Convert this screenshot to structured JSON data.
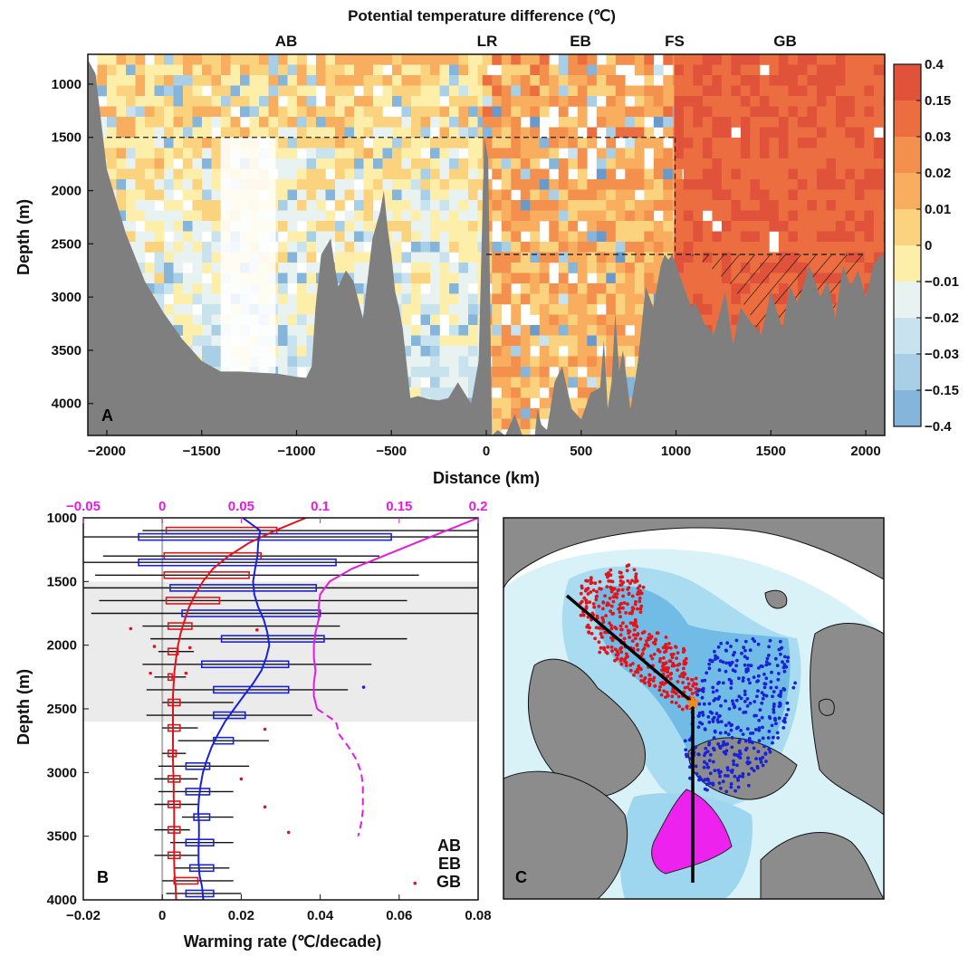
{
  "figure_title": "Potential temperature difference (℃)",
  "colors": {
    "ab": "#e0151b",
    "eb": "#1a22d8",
    "gb": "#e21ce0",
    "gb_fill": "#ee22ee",
    "land": "#7f7f7f",
    "shade": "#ebebeb"
  },
  "chart_data": [
    {
      "panel": "A",
      "type": "heatmap",
      "title": "Potential temperature difference (℃)",
      "xlabel": "Distance (km)",
      "ylabel": "Depth (m)",
      "xlim": [
        -2100,
        2100
      ],
      "ylim": [
        4300,
        720
      ],
      "xticks": [
        -2000,
        -1500,
        -1000,
        -500,
        0,
        500,
        1000,
        1500,
        2000
      ],
      "yticks": [
        1000,
        1500,
        2000,
        2500,
        3000,
        3500,
        4000
      ],
      "basin_labels": [
        {
          "text": "AB",
          "x": -1040
        },
        {
          "text": "LR",
          "x": 0
        },
        {
          "text": "EB",
          "x": 490
        },
        {
          "text": "FS",
          "x": 1000
        },
        {
          "text": "GB",
          "x": 1580
        }
      ],
      "colorbar": {
        "labels": [
          "0.4",
          "0.15",
          "0.03",
          "0.02",
          "0.01",
          "0",
          "-0.01",
          "-0.02",
          "-0.03",
          "-0.15",
          "-0.4"
        ],
        "colors": [
          "#e0533a",
          "#ec6e40",
          "#f3904e",
          "#f8ad5f",
          "#fbd27d",
          "#fdeeaa",
          "#e8f2f0",
          "#c8e2ee",
          "#a9cfe6",
          "#86b5db",
          "#6a9acc"
        ]
      },
      "regions": [
        {
          "name": "AB",
          "x": [
            -2100,
            -20
          ],
          "mean_level": 3.9,
          "depth_decay": 1.5,
          "noise": 2.6,
          "blank_fraction": 0.05
        },
        {
          "name": "EB",
          "x": [
            -20,
            990
          ],
          "mean_level": 2.6,
          "depth_decay": 0.35,
          "noise": 2.8,
          "blank_fraction": 0.1
        },
        {
          "name": "GB",
          "x": [
            990,
            2100
          ],
          "mean_level": 0.5,
          "depth_decay": 0.1,
          "noise": 0.6,
          "blank_fraction": 0.02
        }
      ],
      "dashed_boxes": [
        {
          "x": [
            -2000,
            1000
          ],
          "depth": 1500
        },
        {
          "x": [
            0,
            2000
          ],
          "depth": 2600
        },
        {
          "x": [
            990,
            1000
          ],
          "depth": [
            1500,
            2600
          ]
        }
      ],
      "bathymetry": {
        "distance": [
          -2100,
          -2060,
          -2000,
          -1900,
          -1800,
          -1700,
          -1600,
          -1500,
          -1400,
          -1300,
          -1200,
          -1100,
          -1000,
          -950,
          -920,
          -900,
          -870,
          -820,
          -800,
          -780,
          -740,
          -700,
          -650,
          -600,
          -560,
          -540,
          -520,
          -500,
          -480,
          -460,
          -440,
          -400,
          -360,
          -300,
          -250,
          -200,
          -150,
          -80,
          -40,
          -10,
          10,
          30,
          60,
          100,
          150,
          200,
          250,
          270,
          290,
          320,
          360,
          400,
          450,
          500,
          550,
          600,
          620,
          640,
          660,
          680,
          700,
          720,
          760,
          800,
          840,
          880,
          900,
          920,
          940,
          960,
          980,
          1000,
          1040,
          1080,
          1100,
          1150,
          1200,
          1260,
          1300,
          1340,
          1400,
          1450,
          1500,
          1560,
          1600,
          1640,
          1680,
          1700,
          1760,
          1800,
          1840,
          1880,
          1920,
          1960,
          2000,
          2040,
          2080,
          2100
        ],
        "depth": [
          770,
          900,
          1800,
          2400,
          2850,
          3150,
          3400,
          3600,
          3700,
          3700,
          3710,
          3720,
          3750,
          3760,
          3650,
          3100,
          2600,
          2450,
          2700,
          2900,
          2750,
          2850,
          3200,
          2450,
          2200,
          2000,
          2350,
          2600,
          2950,
          3100,
          3300,
          3950,
          3930,
          3960,
          3970,
          3950,
          3800,
          4000,
          3600,
          1500,
          1700,
          4300,
          4250,
          4300,
          4100,
          4350,
          4400,
          4050,
          4200,
          4250,
          3800,
          3650,
          4050,
          4150,
          3900,
          3850,
          3400,
          4050,
          3800,
          3150,
          3700,
          3500,
          4050,
          3600,
          2900,
          3100,
          2900,
          2700,
          2600,
          2650,
          2600,
          2700,
          2900,
          3100,
          3050,
          3250,
          3350,
          2950,
          3450,
          3100,
          3250,
          3350,
          2950,
          3300,
          2900,
          3050,
          2850,
          2700,
          3000,
          2850,
          3200,
          2700,
          2900,
          2750,
          3000,
          2700,
          2600,
          2620
        ],
        "hatched_gb_floor": [
          2600,
          2620,
          2750,
          2900,
          3200,
          3600,
          3800,
          3700,
          3200,
          2900,
          2700
        ]
      }
    },
    {
      "panel": "B",
      "type": "line",
      "xlabel": "Warming rate (℃/decade)",
      "ylabel": "Depth (m)",
      "xlim": [
        -0.02,
        0.08
      ],
      "xticks": [
        -0.02,
        0,
        0.02,
        0.04,
        0.06,
        0.08
      ],
      "top_xlim": [
        -0.05,
        0.2
      ],
      "top_xticks": [
        -0.05,
        0,
        0.05,
        0.1,
        0.15,
        0.2
      ],
      "ylim": [
        4000,
        1000
      ],
      "yticks": [
        1000,
        1500,
        2000,
        2500,
        3000,
        3500,
        4000
      ],
      "shaded_depth_range": [
        1500,
        2600
      ],
      "legend": [
        "AB",
        "EB",
        "GB"
      ],
      "legend_placement": "bottom-right",
      "depth": [
        1000,
        1100,
        1200,
        1300,
        1400,
        1500,
        1600,
        1700,
        1800,
        1900,
        2000,
        2100,
        2200,
        2300,
        2400,
        2500,
        2600,
        2700,
        2800,
        2900,
        3000,
        3100,
        3200,
        3300,
        3400,
        3500,
        3600,
        3700,
        3800,
        3900,
        4000
      ],
      "series": [
        {
          "name": "AB",
          "axis": "bottom",
          "values": [
            0.0364,
            0.0286,
            0.0218,
            0.0168,
            0.0128,
            0.0103,
            0.0084,
            0.0068,
            0.0057,
            0.0047,
            0.004,
            0.0035,
            0.0031,
            0.0029,
            0.0027,
            0.0027,
            0.0027,
            0.0027,
            0.0027,
            0.0027,
            0.0028,
            0.0029,
            0.0029,
            0.003,
            0.003,
            0.003,
            0.003,
            0.003,
            0.0031,
            0.0034,
            0.0035
          ]
        },
        {
          "name": "EB",
          "axis": "bottom",
          "values": [
            0.0204,
            0.0248,
            0.0243,
            0.0241,
            0.0235,
            0.023,
            0.0233,
            0.0243,
            0.0257,
            0.0266,
            0.0271,
            0.0263,
            0.0251,
            0.023,
            0.0206,
            0.0182,
            0.0159,
            0.0141,
            0.0125,
            0.0113,
            0.0103,
            0.0097,
            0.0093,
            0.0091,
            0.0093,
            0.0093,
            0.0092,
            0.0092,
            0.0094,
            0.0101,
            0.0104
          ]
        },
        {
          "name": "GB",
          "axis": "top",
          "values": [
            0.2,
            0.18,
            0.16,
            0.14,
            0.12,
            0.106,
            0.1,
            0.099,
            0.099,
            0.097,
            0.096,
            0.096,
            0.097,
            0.096,
            0.096,
            0.098,
            0.11,
            0.112,
            0.118,
            0.123,
            0.126,
            0.127,
            0.127,
            0.127,
            0.126,
            0.124,
            null,
            null,
            null,
            null,
            null
          ]
        }
      ],
      "gb_dashed_from_depth": 2600,
      "boxes": {
        "AB": {
          "depth": [
            1100,
            1300,
            1450,
            1650,
            1850,
            2050,
            2250,
            2450,
            2650,
            2850,
            3050,
            3250,
            3450,
            3650,
            3850
          ],
          "q1": [
            0.001,
            0.0005,
            0.0005,
            0.001,
            0.0015,
            0.0015,
            0.0015,
            0.0015,
            0.0015,
            0.0015,
            0.0015,
            0.0015,
            0.0015,
            0.0015,
            0.003
          ],
          "q3": [
            0.029,
            0.025,
            0.022,
            0.0145,
            0.0075,
            0.004,
            0.0025,
            0.0045,
            0.0045,
            0.0035,
            0.0045,
            0.0045,
            0.0045,
            0.0045,
            0.009
          ],
          "wlo": [
            -0.005,
            -0.015,
            -0.017,
            -0.016,
            -0.005,
            -0.001,
            -0.002,
            0,
            0,
            0,
            -0.002,
            -0.002,
            -0.002,
            -0.002,
            0
          ],
          "whi": [
            0.08,
            0.055,
            0.065,
            0.062,
            0.045,
            0.008,
            0.006,
            0.018,
            0.009,
            0.006,
            0.009,
            0.009,
            0.007,
            0.009,
            0.018
          ]
        },
        "EB": {
          "depth": [
            1150,
            1350,
            1550,
            1750,
            1950,
            2150,
            2350,
            2550,
            2750,
            2950,
            3150,
            3350,
            3550,
            3750,
            3950
          ],
          "q1": [
            -0.006,
            -0.006,
            0.002,
            0.005,
            0.015,
            0.01,
            0.013,
            0.013,
            0.013,
            0.006,
            0.006,
            0.008,
            0.006,
            0.007,
            0.006
          ],
          "q3": [
            0.058,
            0.044,
            0.039,
            0.04,
            0.041,
            0.032,
            0.032,
            0.021,
            0.018,
            0.012,
            0.012,
            0.012,
            0.013,
            0.013,
            0.013
          ],
          "wlo": [
            -0.02,
            -0.02,
            -0.02,
            -0.018,
            -0.003,
            -0.005,
            -0.004,
            -0.004,
            0.004,
            -0.001,
            -0.001,
            0.005,
            0.002,
            0.003,
            0.001
          ],
          "whi": [
            0.08,
            0.08,
            0.08,
            0.08,
            0.062,
            0.053,
            0.047,
            0.038,
            0.027,
            0.022,
            0.018,
            0.018,
            0.018,
            0.017,
            0.02
          ]
        },
        "outliers": [
          [
            -0.008,
            1870,
            "AB"
          ],
          [
            0.024,
            1880,
            "AB"
          ],
          [
            -0.002,
            2010,
            "AB"
          ],
          [
            0.007,
            2020,
            "AB"
          ],
          [
            -0.003,
            2220,
            "AB"
          ],
          [
            0.006,
            2220,
            "AB"
          ],
          [
            0.051,
            2330,
            "EB"
          ],
          [
            0.026,
            2660,
            "AB"
          ],
          [
            0.02,
            3050,
            "AB"
          ],
          [
            0.026,
            3270,
            "AB"
          ],
          [
            0.032,
            3470,
            "AB"
          ],
          [
            0.064,
            3870,
            "AB"
          ]
        ]
      }
    },
    {
      "panel": "C",
      "type": "scatter",
      "description_label": "C",
      "series": [
        {
          "name": "AB",
          "points": 420
        },
        {
          "name": "EB",
          "points": 380
        },
        {
          "name": "GB",
          "points": 120
        }
      ]
    }
  ],
  "panel_labels": {
    "a": "A",
    "b": "B",
    "c": "C"
  }
}
